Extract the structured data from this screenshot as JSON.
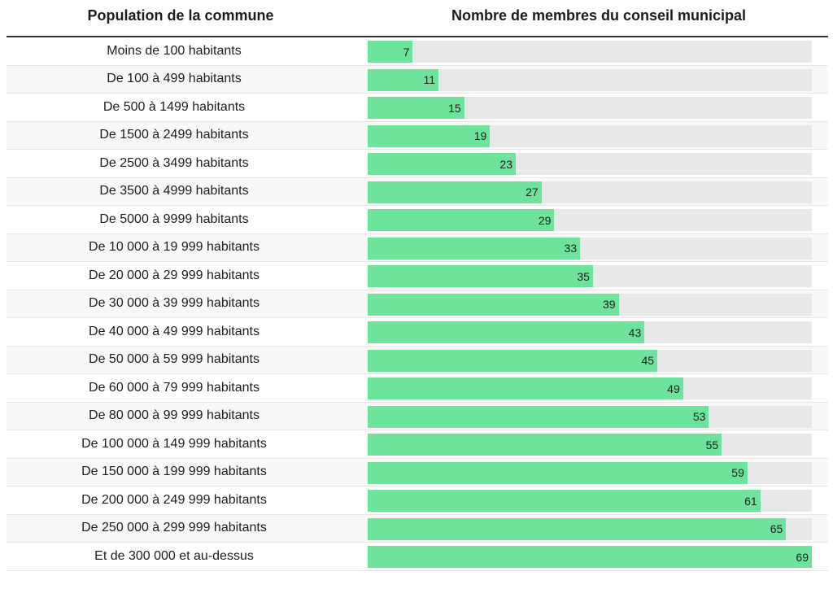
{
  "chart_data": {
    "type": "bar",
    "orientation": "horizontal",
    "columns": {
      "left_header": "Population de la commune",
      "right_header": "Nombre de membres du conseil municipal"
    },
    "xlim": [
      0,
      69
    ],
    "categories": [
      "Moins de 100 habitants",
      "De 100 à 499 habitants",
      "De 500 à 1499 habitants",
      "De 1500 à 2499 habitants",
      "De 2500 à 3499 habitants",
      "De 3500 à 4999 habitants",
      "De 5000 à 9999 habitants",
      "De 10 000 à 19 999 habitants",
      "De 20 000 à 29 999 habitants",
      "De 30 000 à 39 999 habitants",
      "De 40 000 à 49 999 habitants",
      "De 50 000 à 59 999 habitants",
      "De 60 000 à 79 999 habitants",
      "De 80 000 à 99 999 habitants",
      "De 100 000 à 149 999 habitants",
      "De 150 000 à 199 999 habitants",
      "De 200 000 à 249 999 habitants",
      "De 250 000 à 299 999 habitants",
      "Et de 300 000 et au-dessus"
    ],
    "values": [
      7,
      11,
      15,
      19,
      23,
      27,
      29,
      33,
      35,
      39,
      43,
      45,
      49,
      53,
      55,
      59,
      61,
      65,
      69
    ],
    "colors": {
      "bar": "#6ee39c",
      "track": "#e8e8e8"
    }
  }
}
